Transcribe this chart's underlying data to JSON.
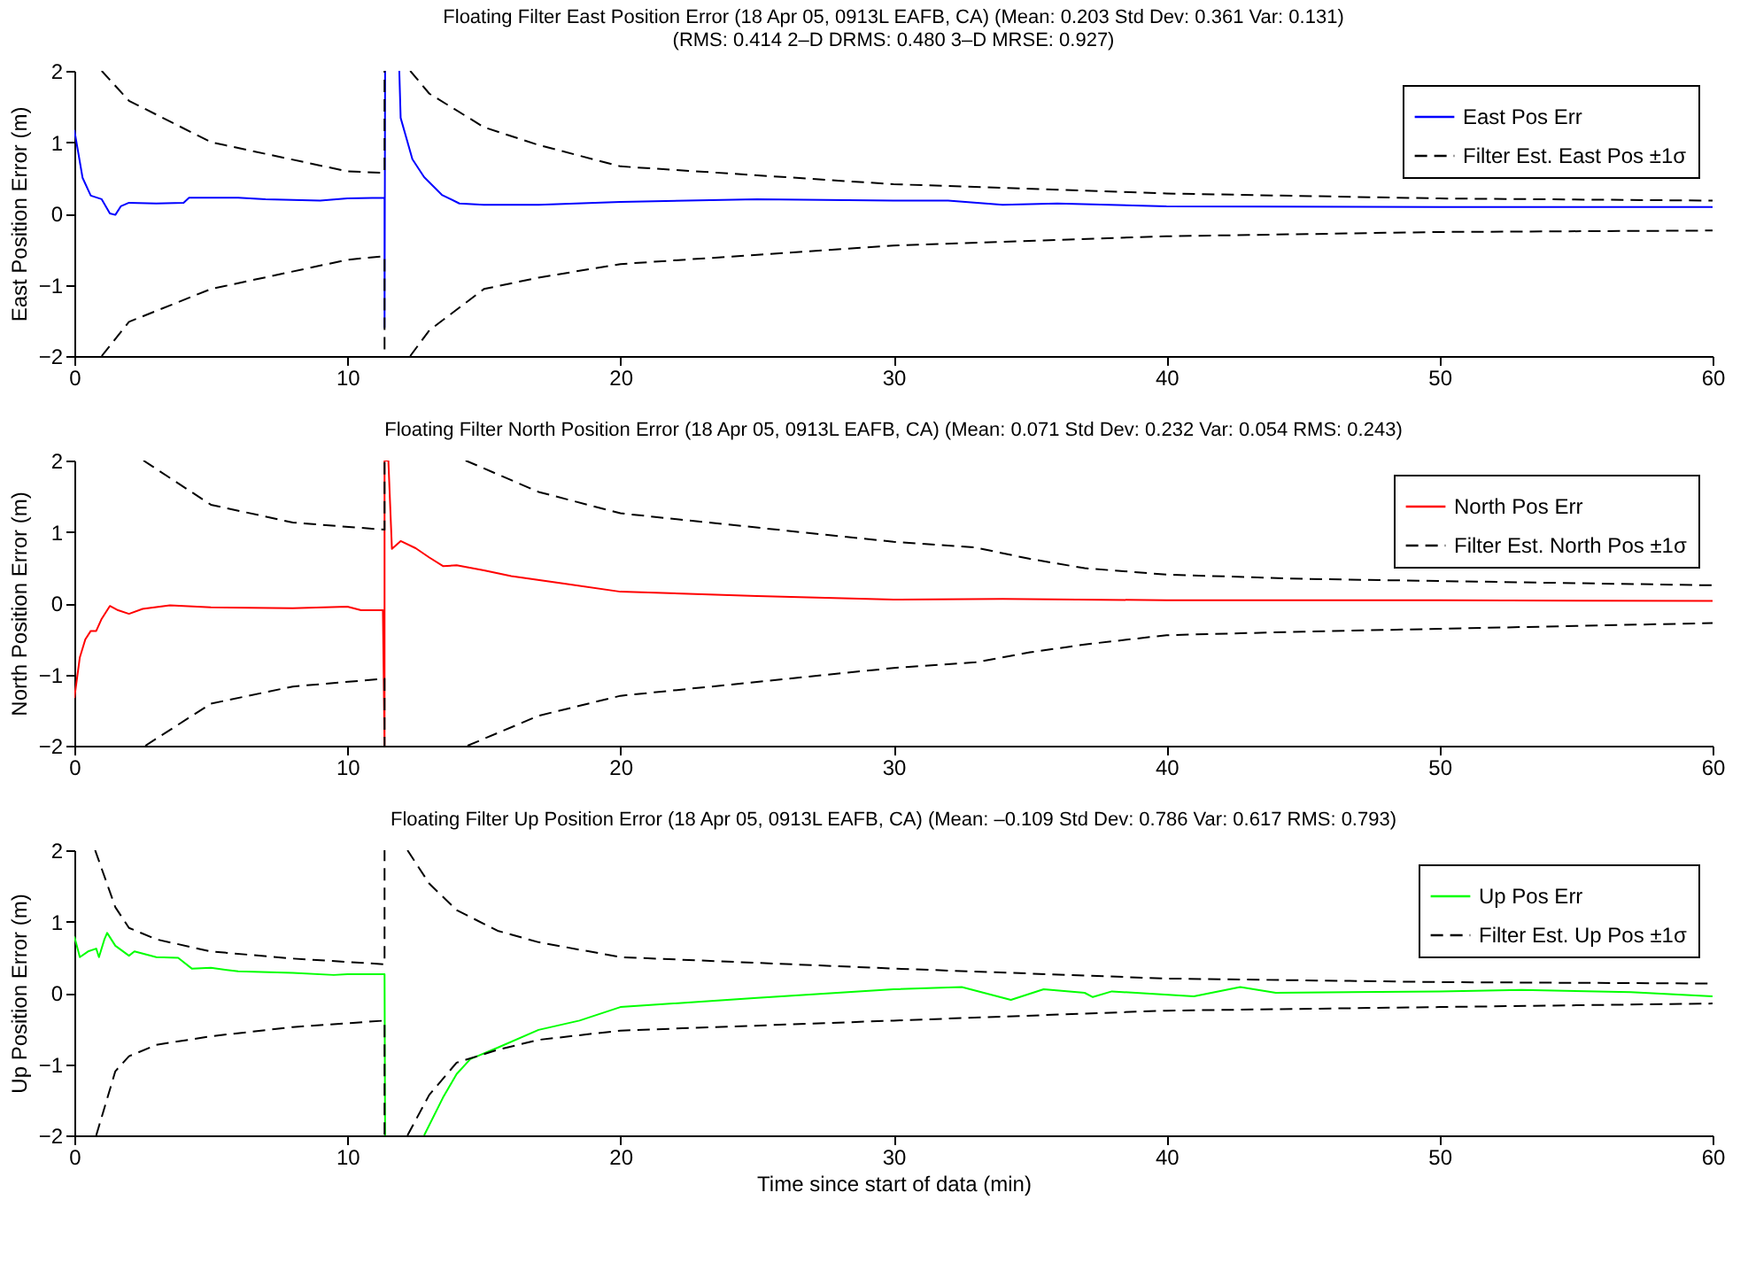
{
  "chart_data": [
    {
      "type": "line",
      "title": "Floating Filter East Position Error (18 Apr 05, 0913L EAFB, CA)  (Mean: 0.203  Std Dev: 0.361  Var: 0.131)",
      "subtitle": "(RMS: 0.414  2–D DRMS: 0.480  3–D MRSE: 0.927)",
      "ylabel": "East Position Error (m)",
      "xlim": [
        0,
        60
      ],
      "xticks": [
        0,
        10,
        20,
        30,
        40,
        50,
        60
      ],
      "ylim": [
        -2,
        2
      ],
      "yticks": [
        -2,
        -1,
        0,
        1,
        2
      ],
      "legend": "top right",
      "series": [
        {
          "name": "East Pos Err",
          "color": "#0000ff",
          "line_style": "solid",
          "x": [
            0,
            0.3,
            0.6,
            1.0,
            1.3,
            1.5,
            1.7,
            2,
            3,
            4,
            4.2,
            5,
            6,
            7,
            8,
            9,
            10,
            11.36,
            11.36,
            11.38,
            11.6,
            11.9,
            11.95,
            12.38,
            12.81,
            13.46,
            14.1,
            15,
            17,
            20,
            25,
            30,
            32,
            34,
            36,
            40,
            50,
            60
          ],
          "values": [
            1.17,
            0.5,
            0.25,
            0.2,
            0.0,
            -0.02,
            0.1,
            0.15,
            0.14,
            0.15,
            0.22,
            0.22,
            0.22,
            0.2,
            0.19,
            0.18,
            0.21,
            0.22,
            -1.6,
            2,
            null,
            2,
            1.34,
            0.76,
            0.51,
            0.26,
            0.14,
            0.12,
            0.12,
            0.16,
            0.2,
            0.18,
            0.18,
            0.12,
            0.14,
            0.1,
            0.09,
            0.09
          ]
        },
        {
          "name": "Filter Est. East Pos ±1σ",
          "color": "#000000",
          "line_style": "dashed",
          "x": [
            1.0,
            2,
            5,
            10,
            11.36,
            11.36,
            11.8,
            12.3,
            13,
            15,
            17,
            20,
            30,
            40,
            50,
            60
          ],
          "values": [
            2,
            1.58,
            1.0,
            0.59,
            0.57,
            2,
            null,
            2,
            1.68,
            1.21,
            0.96,
            0.66,
            0.41,
            0.28,
            0.21,
            0.18
          ]
        },
        {
          "color": "#000000",
          "line_style": "dashed",
          "x": [
            1.0,
            2,
            5,
            10,
            11.36,
            11.36,
            11.8,
            12.3,
            13,
            15,
            17,
            20,
            30,
            40,
            50,
            60
          ],
          "values": [
            -2,
            -1.52,
            -1.06,
            -0.65,
            -0.6,
            -2,
            null,
            -2,
            -1.64,
            -1.06,
            -0.9,
            -0.71,
            -0.45,
            -0.32,
            -0.26,
            -0.24
          ]
        }
      ]
    },
    {
      "type": "line",
      "title": "Floating Filter North Position Error (18 Apr 05, 0913L EAFB, CA)  (Mean: 0.071  Std Dev: 0.232  Var: 0.054  RMS: 0.243)",
      "ylabel": "North Position Error (m)",
      "xlim": [
        0,
        60
      ],
      "xticks": [
        0,
        10,
        20,
        30,
        40,
        50,
        60
      ],
      "ylim": [
        -2,
        2
      ],
      "yticks": [
        -2,
        -1,
        0,
        1,
        2
      ],
      "legend": "top right",
      "series": [
        {
          "name": "North Pos Err",
          "color": "#ff0000",
          "line_style": "solid",
          "x": [
            0,
            0.2,
            0.4,
            0.6,
            0.8,
            1.0,
            1.3,
            1.6,
            2,
            2.5,
            3.5,
            5,
            8,
            10,
            10.5,
            11.3,
            11.36,
            11.36,
            11.5,
            11.63,
            11.95,
            12.5,
            13,
            13.5,
            14,
            15,
            16,
            18,
            20,
            25,
            30,
            34,
            40,
            50,
            60
          ],
          "values": [
            -1.33,
            -0.76,
            -0.51,
            -0.39,
            -0.39,
            -0.22,
            -0.04,
            -0.1,
            -0.15,
            -0.08,
            -0.03,
            -0.06,
            -0.07,
            -0.05,
            -0.1,
            -0.1,
            -2,
            2,
            2,
            0.76,
            0.87,
            0.77,
            0.64,
            0.52,
            0.53,
            0.46,
            0.38,
            0.27,
            0.16,
            0.1,
            0.05,
            0.06,
            0.04,
            0.04,
            0.03
          ]
        },
        {
          "name": "Filter Est. North Pos ±1σ",
          "color": "#000000",
          "line_style": "dashed",
          "x": [
            2.53,
            5,
            8,
            11.36,
            11.36,
            12,
            14.33,
            17,
            20,
            30,
            33,
            35,
            37,
            40,
            45,
            50,
            60
          ],
          "values": [
            2,
            1.38,
            1.13,
            1.03,
            2,
            null,
            2,
            1.56,
            1.26,
            0.86,
            0.78,
            0.62,
            0.49,
            0.4,
            0.34,
            0.31,
            0.25
          ]
        },
        {
          "color": "#000000",
          "line_style": "dashed",
          "x": [
            2.6,
            5,
            8,
            11.36,
            11.36,
            12,
            14.4,
            17,
            20,
            30,
            33,
            35,
            37,
            40,
            45,
            50,
            60
          ],
          "values": [
            -2,
            -1.41,
            -1.17,
            -1.06,
            -2,
            null,
            -2,
            -1.58,
            -1.3,
            -0.91,
            -0.83,
            -0.69,
            -0.58,
            -0.45,
            -0.4,
            -0.36,
            -0.28
          ]
        }
      ]
    },
    {
      "type": "line",
      "title": "Floating Filter Up Position Error (18 Apr 05, 0913L EAFB, CA)  (Mean: –0.109  Std Dev: 0.786  Var: 0.617  RMS: 0.793)",
      "xlabel": "Time since start of data (min)",
      "ylabel": "Up Position Error (m)",
      "xlim": [
        0,
        60
      ],
      "xticks": [
        0,
        10,
        20,
        30,
        40,
        50,
        60
      ],
      "ylim": [
        -2,
        2
      ],
      "yticks": [
        -2,
        -1,
        0,
        1,
        2
      ],
      "legend": "top right",
      "series": [
        {
          "name": "Up Pos Err",
          "color": "#00ff00",
          "line_style": "solid",
          "x": [
            0,
            0.2,
            0.5,
            0.8,
            0.9,
            1.1,
            1.2,
            1.5,
            2,
            2.2,
            3,
            3.8,
            4.3,
            5,
            6,
            8,
            9.5,
            10,
            11.36,
            11.38,
            12.6,
            12.81,
            13.5,
            14,
            14.5,
            15.5,
            17,
            18.5,
            20,
            25,
            30,
            32.5,
            34.3,
            35.5,
            37,
            37.3,
            38,
            41,
            42.7,
            44,
            50,
            53,
            57,
            60
          ],
          "values": [
            0.79,
            0.5,
            0.58,
            0.62,
            0.5,
            0.75,
            0.84,
            0.66,
            0.52,
            0.58,
            0.5,
            0.49,
            0.34,
            0.35,
            0.3,
            0.28,
            0.25,
            0.26,
            0.26,
            -2,
            null,
            -2,
            -1.47,
            -1.14,
            -0.93,
            -0.77,
            -0.52,
            -0.39,
            -0.2,
            -0.07,
            0.05,
            0.08,
            -0.1,
            0.05,
            0.0,
            -0.06,
            0.02,
            -0.05,
            0.08,
            0.0,
            0.02,
            0.04,
            0.01,
            -0.05
          ]
        },
        {
          "name": "Filter Est. Up Pos ±1σ",
          "color": "#000000",
          "line_style": "dashed",
          "x": [
            0.76,
            1.5,
            2,
            3,
            5,
            8,
            11.36,
            11.36,
            11.8,
            12.2,
            13,
            14,
            15.5,
            17,
            20,
            30,
            40,
            50,
            60
          ],
          "values": [
            2,
            1.2,
            0.91,
            0.75,
            0.58,
            0.48,
            0.4,
            2,
            null,
            2,
            1.53,
            1.16,
            0.87,
            0.71,
            0.5,
            0.34,
            0.2,
            0.15,
            0.13
          ]
        },
        {
          "color": "#000000",
          "line_style": "dashed",
          "x": [
            0.8,
            1.5,
            2,
            3,
            5,
            8,
            11.36,
            11.36,
            11.8,
            12.2,
            13,
            14,
            15.5,
            17,
            20,
            30,
            40,
            50,
            60
          ],
          "values": [
            -2,
            -1.1,
            -0.89,
            -0.73,
            -0.61,
            -0.48,
            -0.39,
            -2,
            null,
            -2,
            -1.43,
            -0.98,
            -0.8,
            -0.66,
            -0.53,
            -0.39,
            -0.25,
            -0.2,
            -0.15
          ]
        }
      ]
    }
  ]
}
